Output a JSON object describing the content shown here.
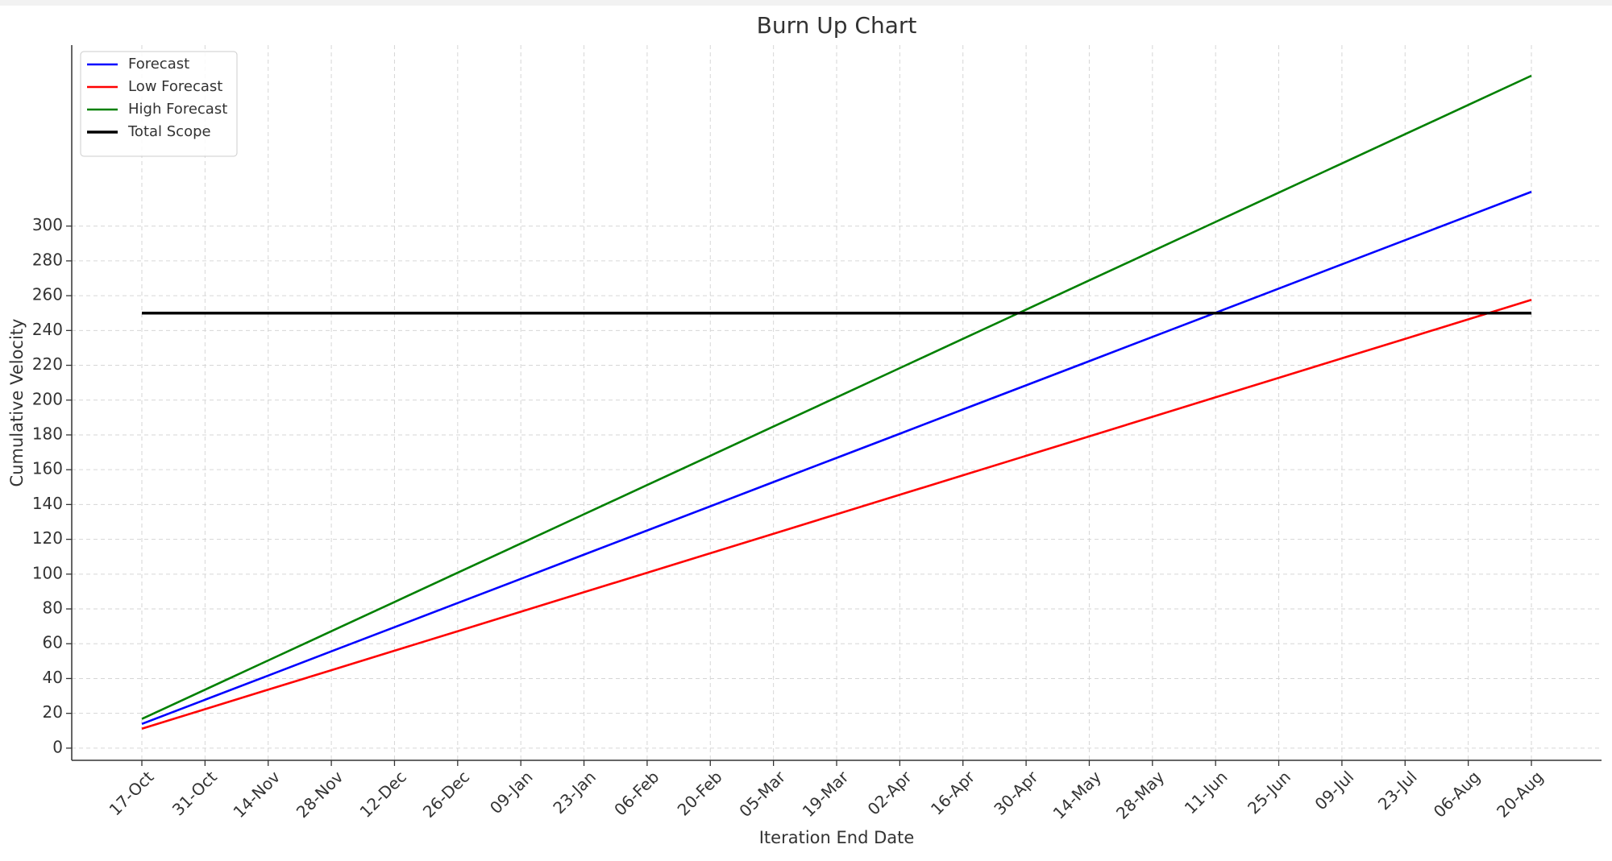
{
  "chart_data": {
    "type": "line",
    "title": "Burn Up Chart",
    "x_label": "Iteration End Date",
    "y_label": "Cumulative Velocity",
    "categories": [
      "17-Oct",
      "31-Oct",
      "14-Nov",
      "28-Nov",
      "12-Dec",
      "26-Dec",
      "09-Jan",
      "23-Jan",
      "06-Feb",
      "20-Feb",
      "05-Mar",
      "19-Mar",
      "02-Apr",
      "16-Apr",
      "30-Apr",
      "14-May",
      "28-May",
      "11-Jun",
      "25-Jun",
      "09-Jul",
      "23-Jul",
      "06-Aug",
      "20-Aug"
    ],
    "series": [
      {
        "name": "Forecast",
        "color": "#0000ff",
        "values": [
          13.9,
          27.8,
          41.7,
          55.6,
          69.5,
          83.4,
          97.3,
          111.2,
          125.1,
          139,
          152.9,
          166.8,
          180.7,
          194.6,
          208.5,
          222.4,
          236.3,
          250.2,
          264.1,
          278,
          291.9,
          305.8,
          319.7
        ]
      },
      {
        "name": "Low Forecast",
        "color": "#ff0000",
        "values": [
          11.2,
          22.4,
          33.6,
          44.8,
          56,
          67.2,
          78.4,
          89.6,
          100.8,
          112,
          123.2,
          134.4,
          145.6,
          156.8,
          168,
          179.2,
          190.4,
          201.6,
          212.8,
          224,
          235.2,
          246.4,
          257.6
        ]
      },
      {
        "name": "High Forecast",
        "color": "#008000",
        "values": [
          16.8,
          33.6,
          50.4,
          67.2,
          84,
          100.8,
          117.6,
          134.4,
          151.2,
          168,
          184.8,
          201.6,
          218.4,
          235.2,
          252,
          268.8,
          285.6,
          302.4,
          319.2,
          336,
          352.8,
          369.6,
          386.4
        ]
      },
      {
        "name": "Total Scope",
        "color": "#000000",
        "values": [
          250,
          250,
          250,
          250,
          250,
          250,
          250,
          250,
          250,
          250,
          250,
          250,
          250,
          250,
          250,
          250,
          250,
          250,
          250,
          250,
          250,
          250,
          250
        ]
      }
    ],
    "ylim": [
      -7,
      404
    ],
    "yticks": [
      0,
      20,
      40,
      60,
      80,
      100,
      120,
      140,
      160,
      180,
      200,
      220,
      240,
      260,
      280,
      300
    ],
    "grid": true,
    "legend": "upper left"
  }
}
